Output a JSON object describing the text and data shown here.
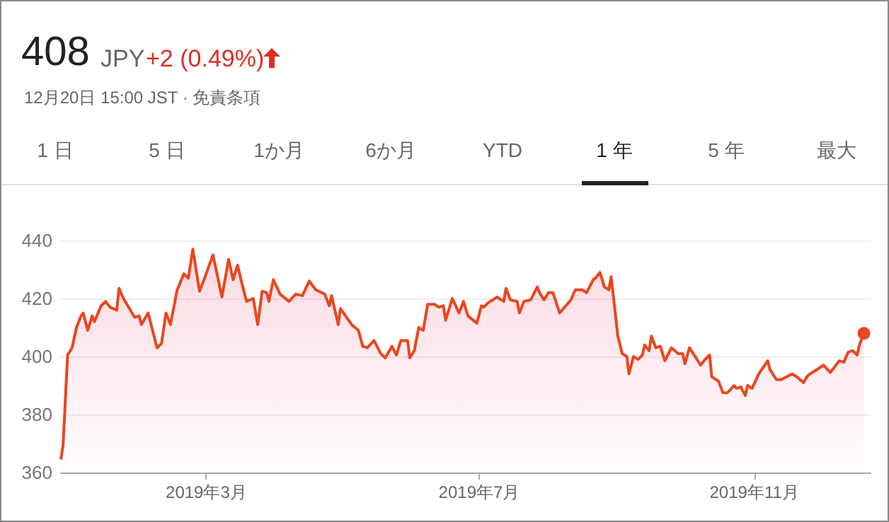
{
  "chart_data": {
    "type": "area",
    "title": "408",
    "subtitle": "12月20日 15:00 JST · 免責条項",
    "annotations": [
      "JPY",
      "+2 (0.49%)",
      "1 日",
      "5 日",
      "1か月",
      "6か月",
      "YTD",
      "1 年",
      "5 年",
      "最大"
    ],
    "x": [
      "2018-12-26",
      "2018-12-27",
      "2018-12-29",
      "2018-12-31",
      "2019-01-02",
      "2019-01-04",
      "2019-01-05",
      "2019-01-07",
      "2019-01-09",
      "2019-01-10",
      "2019-01-13",
      "2019-01-15",
      "2019-01-17",
      "2019-01-20",
      "2019-01-21",
      "2019-01-23",
      "2019-01-28",
      "2019-01-30",
      "2019-01-31",
      "2019-02-03",
      "2019-02-07",
      "2019-02-09",
      "2019-02-11",
      "2019-02-13",
      "2019-02-16",
      "2019-02-19",
      "2019-02-21",
      "2019-02-23",
      "2019-02-26",
      "2019-02-28",
      "2019-03-04",
      "2019-03-08",
      "2019-03-11",
      "2019-03-13",
      "2019-03-15",
      "2019-03-17",
      "2019-03-19",
      "2019-03-22",
      "2019-03-24",
      "2019-03-26",
      "2019-03-28",
      "2019-03-29",
      "2019-03-31",
      "2019-04-03",
      "2019-04-07",
      "2019-04-10",
      "2019-04-13",
      "2019-04-16",
      "2019-04-19",
      "2019-04-23",
      "2019-04-25",
      "2019-04-26",
      "2019-04-29",
      "2019-04-30",
      "2019-05-05",
      "2019-05-08",
      "2019-05-10",
      "2019-05-12",
      "2019-05-15",
      "2019-05-18",
      "2019-05-20",
      "2019-05-23",
      "2019-05-25",
      "2019-05-27",
      "2019-05-30",
      "2019-05-31",
      "2019-06-02",
      "2019-06-04",
      "2019-06-06",
      "2019-06-08",
      "2019-06-11",
      "2019-06-13",
      "2019-06-15",
      "2019-06-16",
      "2019-06-19",
      "2019-06-22",
      "2019-06-24",
      "2019-06-26",
      "2019-06-30",
      "2019-07-02",
      "2019-07-03",
      "2019-07-05",
      "2019-07-09",
      "2019-07-12",
      "2019-07-13",
      "2019-07-15",
      "2019-07-18",
      "2019-07-19",
      "2019-07-21",
      "2019-07-24",
      "2019-07-27",
      "2019-07-28",
      "2019-07-30",
      "2019-08-01",
      "2019-08-03",
      "2019-08-06",
      "2019-08-11",
      "2019-08-13",
      "2019-08-16",
      "2019-08-18",
      "2019-08-21",
      "2019-08-22",
      "2019-08-24",
      "2019-08-26",
      "2019-08-28",
      "2019-08-29",
      "2019-08-31",
      "2019-09-01",
      "2019-09-03",
      "2019-09-05",
      "2019-09-06",
      "2019-09-08",
      "2019-09-10",
      "2019-09-12",
      "2019-09-13",
      "2019-09-15",
      "2019-09-16",
      "2019-09-18",
      "2019-09-20",
      "2019-09-22",
      "2019-09-25",
      "2019-09-28",
      "2019-09-30",
      "2019-10-01",
      "2019-10-03",
      "2019-10-06",
      "2019-10-08",
      "2019-10-10",
      "2019-10-12",
      "2019-10-13",
      "2019-10-16",
      "2019-10-18",
      "2019-10-20",
      "2019-10-23",
      "2019-10-24",
      "2019-10-26",
      "2019-10-28",
      "2019-10-29",
      "2019-10-31",
      "2019-11-03",
      "2019-11-07",
      "2019-11-08",
      "2019-11-11",
      "2019-11-13",
      "2019-11-18",
      "2019-11-20",
      "2019-11-23",
      "2019-11-25",
      "2019-11-29",
      "2019-12-02",
      "2019-12-05",
      "2019-12-07",
      "2019-12-09",
      "2019-12-11",
      "2019-12-13",
      "2019-12-15",
      "2019-12-17",
      "2019-12-18",
      "2019-12-20"
    ],
    "series": [
      {
        "color": "#e8471f",
        "values": [
          364.5,
          369.5,
          400.5,
          403,
          410,
          414,
          415,
          409,
          414,
          412,
          417.5,
          419,
          417,
          416,
          423.5,
          420,
          413.5,
          414,
          411,
          415,
          403,
          404.5,
          415,
          411,
          423,
          428.5,
          427,
          437,
          422.5,
          426.5,
          435,
          420.5,
          433.5,
          426.5,
          431.5,
          425,
          419,
          420,
          411,
          422.5,
          422,
          419,
          426.5,
          421.5,
          419,
          421.5,
          421,
          426,
          423,
          421.5,
          417.5,
          421,
          411,
          416.5,
          411,
          409,
          403.5,
          403,
          405.5,
          401,
          399.5,
          403.5,
          400.5,
          405.5,
          405.5,
          399.5,
          402,
          410,
          409,
          418,
          418,
          417,
          417.5,
          412.5,
          420,
          415,
          419,
          414,
          411.5,
          417.5,
          417,
          418.5,
          420.5,
          419,
          423.5,
          419.5,
          419,
          415,
          419,
          419.5,
          424,
          422,
          419.5,
          422,
          422,
          415,
          419.5,
          423,
          423,
          422,
          426.5,
          427,
          429,
          424,
          423,
          427.5,
          414,
          407,
          401,
          400,
          394,
          400,
          399,
          400.5,
          404,
          402,
          407,
          403,
          403.5,
          398.5,
          403,
          401,
          401,
          397.5,
          403,
          399.5,
          397,
          399,
          400.5,
          393,
          391.5,
          387.5,
          387.5,
          390,
          389,
          389.5,
          386.5,
          390,
          389,
          394,
          398.5,
          395.5,
          392,
          392,
          394,
          393,
          391,
          393.5,
          395.5,
          397,
          394.5,
          396.5,
          398.5,
          398,
          401.5,
          402,
          400.5,
          404,
          408
        ]
      }
    ],
    "xlim": [
      "2018-12-26",
      "2019-12-23"
    ],
    "xticks": [
      {
        "value": "2019-03-01",
        "label": "2019年3月"
      },
      {
        "value": "2019-07-01",
        "label": "2019年7月"
      },
      {
        "value": "2019-11-01",
        "label": "2019年11月"
      }
    ],
    "ylim": [
      360,
      440
    ],
    "yticks": [
      360,
      380,
      400,
      420,
      440
    ],
    "grid": "y"
  }
}
